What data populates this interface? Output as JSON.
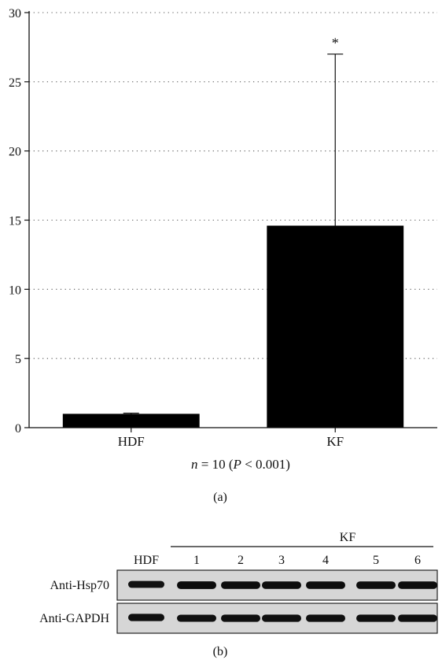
{
  "chart_data": {
    "type": "bar",
    "categories": [
      "HDF",
      "KF"
    ],
    "values": [
      1.0,
      14.6
    ],
    "error_upper": [
      1.05,
      27.0
    ],
    "significance": [
      "",
      "*"
    ],
    "ylim": [
      0,
      30
    ],
    "yticks": [
      0,
      5,
      10,
      15,
      20,
      25,
      30
    ],
    "grid": "dotted horizontal",
    "bar_color": "#000000",
    "xlabel": "n = 10 (P < 0.001)",
    "xlabel_parts": {
      "n": "n",
      "eq": " = 10 (",
      "p": "P",
      "rest": " < 0.001)"
    },
    "panel_label": "(a)"
  },
  "blot": {
    "group_label": "KF",
    "lanes": [
      "HDF",
      "1",
      "2",
      "3",
      "4",
      "5",
      "6"
    ],
    "rows": [
      {
        "label": "Anti-Hsp70",
        "intensity": [
          0.75,
          0.95,
          0.9,
          0.9,
          0.9,
          0.88,
          0.9
        ]
      },
      {
        "label": "Anti-GAPDH",
        "intensity": [
          0.85,
          0.8,
          0.85,
          0.85,
          0.85,
          0.85,
          0.85
        ]
      }
    ],
    "panel_label": "(b)"
  }
}
